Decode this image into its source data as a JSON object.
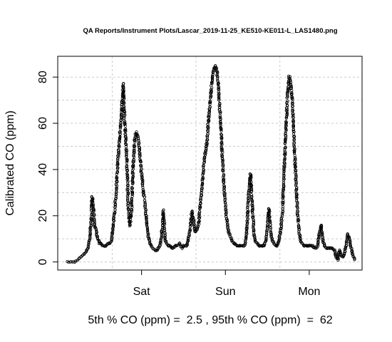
{
  "chart_data": {
    "type": "scatter",
    "title": "QA Reports/Instrument Plots/Lascar_2019-11-25_KE510-KE011-L_LAS1480.png",
    "ylabel": "Calibrated CO (ppm)",
    "xlabel": "",
    "x_ticks": [
      "Sat",
      "Sun",
      "Mon"
    ],
    "x_tick_positions": [
      1.0,
      2.0,
      3.0
    ],
    "y_ticks": [
      "0",
      "20",
      "40",
      "60",
      "80"
    ],
    "y_tick_values": [
      0,
      20,
      40,
      60,
      80
    ],
    "xlim": [
      0.0,
      3.63
    ],
    "ylim": [
      -3.5,
      89
    ],
    "grid": true,
    "marker": "open-circle",
    "caption": "5th % CO (ppm) =  2.5 , 95th % CO (ppm)  =  62",
    "series": [
      {
        "x": [
          0.12,
          0.16,
          0.2,
          0.24,
          0.27,
          0.3,
          0.33,
          0.36,
          0.38,
          0.4,
          0.41,
          0.43,
          0.44,
          0.46,
          0.48,
          0.5,
          0.52,
          0.54,
          0.56,
          0.58,
          0.6,
          0.62,
          0.64,
          0.66,
          0.68,
          0.7,
          0.72,
          0.74,
          0.76,
          0.78,
          0.8,
          0.82,
          0.83,
          0.84,
          0.86,
          0.88,
          0.9,
          0.92,
          0.94,
          0.96,
          0.98,
          1.0,
          1.03,
          1.06,
          1.08,
          1.1,
          1.13,
          1.16,
          1.18,
          1.2,
          1.22,
          1.24,
          1.26,
          1.28,
          1.3,
          1.32,
          1.34,
          1.36,
          1.38,
          1.4,
          1.42,
          1.45,
          1.48,
          1.5,
          1.52,
          1.54,
          1.56,
          1.58,
          1.6,
          1.62,
          1.64,
          1.66,
          1.68,
          1.7,
          1.72,
          1.75,
          1.78,
          1.8,
          1.82,
          1.84,
          1.86,
          1.88,
          1.9,
          1.92,
          1.94,
          1.96,
          1.98,
          2.0,
          2.02,
          2.04,
          2.06,
          2.08,
          2.1,
          2.12,
          2.14,
          2.16,
          2.18,
          2.2,
          2.22,
          2.24,
          2.26,
          2.28,
          2.3,
          2.32,
          2.34,
          2.36,
          2.38,
          2.4,
          2.42,
          2.44,
          2.46,
          2.48,
          2.5,
          2.52,
          2.54,
          2.56,
          2.58,
          2.6,
          2.62,
          2.64,
          2.66,
          2.68,
          2.7,
          2.72,
          2.74,
          2.76,
          2.78,
          2.8,
          2.82,
          2.84,
          2.86,
          2.88,
          2.9,
          2.92,
          2.94,
          2.96,
          2.98,
          3.0,
          3.02,
          3.04,
          3.06,
          3.08,
          3.1,
          3.12,
          3.14,
          3.16,
          3.18,
          3.2,
          3.22,
          3.24,
          3.26,
          3.28,
          3.3,
          3.32,
          3.34,
          3.36,
          3.38,
          3.4,
          3.42,
          3.44,
          3.46,
          3.48,
          3.5,
          3.52,
          3.54
        ],
        "y": [
          0,
          0,
          0,
          1,
          2,
          3,
          4,
          6,
          10,
          18,
          28,
          21,
          16,
          13,
          10,
          8,
          8,
          7,
          7,
          7,
          8,
          8,
          9,
          16,
          22,
          33,
          45,
          55,
          64,
          77,
          60,
          47,
          38,
          25,
          16,
          22,
          42,
          54,
          56,
          53,
          47,
          38,
          28,
          18,
          11,
          8,
          6,
          5,
          5,
          6,
          7,
          12,
          22,
          10,
          8,
          7,
          7,
          6,
          6,
          7,
          7,
          8,
          6,
          7,
          7,
          7,
          10,
          14,
          22,
          18,
          13,
          14,
          16,
          25,
          32,
          45,
          52,
          62,
          70,
          78,
          83,
          85,
          82,
          74,
          62,
          48,
          35,
          24,
          17,
          13,
          11,
          9,
          8,
          8,
          7,
          7,
          7,
          7,
          7,
          8,
          16,
          32,
          38,
          24,
          12,
          9,
          8,
          7,
          7,
          7,
          7,
          9,
          14,
          23,
          13,
          9,
          8,
          7,
          7,
          10,
          14,
          22,
          40,
          55,
          72,
          80,
          78,
          68,
          52,
          36,
          22,
          13,
          9,
          8,
          7,
          7,
          7,
          7,
          7,
          7,
          6,
          6,
          7,
          12,
          16,
          10,
          7,
          6,
          6,
          6,
          6,
          6,
          5,
          2,
          1,
          5,
          3,
          2,
          4,
          7,
          12,
          10,
          6,
          3,
          1
        ]
      }
    ]
  }
}
